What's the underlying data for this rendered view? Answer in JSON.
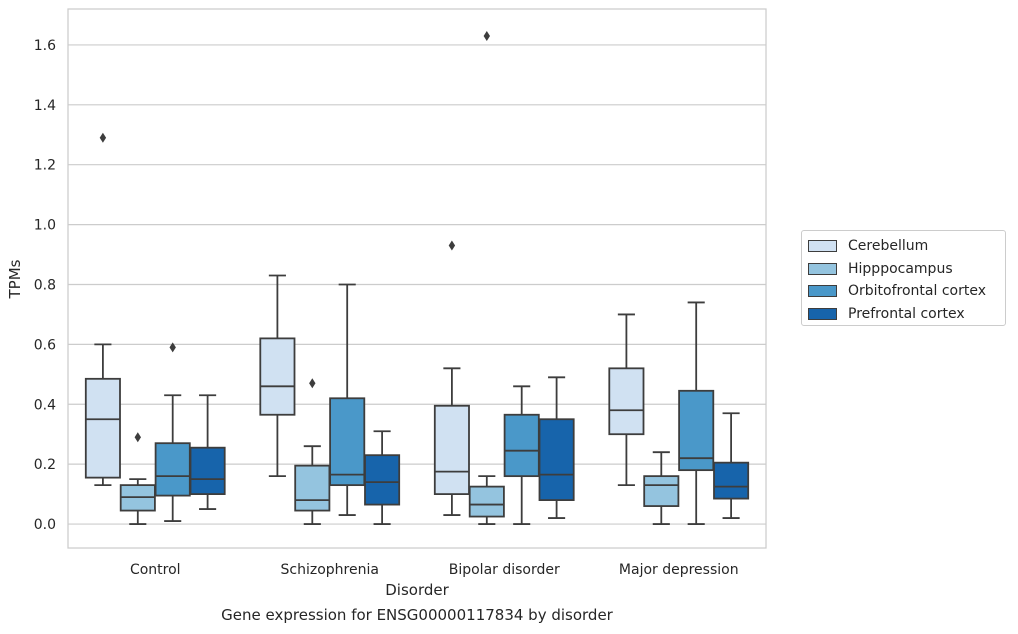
{
  "chart_data": {
    "type": "box",
    "caption": "Gene expression for ENSG00000117834 by disorder",
    "xlabel": "Disorder",
    "ylabel": "TPMs",
    "ylim": [
      -0.08,
      1.72
    ],
    "yticks": [
      "0.0",
      "0.2",
      "0.4",
      "0.6",
      "0.8",
      "1.0",
      "1.2",
      "1.4",
      "1.6"
    ],
    "ytick_values": [
      0,
      0.2,
      0.4,
      0.6,
      0.8,
      1.0,
      1.2,
      1.4,
      1.6
    ],
    "categories": [
      "Control",
      "Schizophrenia",
      "Bipolar disorder",
      "Major depression"
    ],
    "grid": "horizontal",
    "legend_position": "right",
    "series": [
      {
        "name": "Cerebellum",
        "color": "#d0e1f2",
        "boxes": [
          {
            "whisker_low": 0.13,
            "q1": 0.155,
            "median": 0.35,
            "q3": 0.485,
            "whisker_high": 0.6,
            "outliers": [
              1.29
            ]
          },
          {
            "whisker_low": 0.16,
            "q1": 0.365,
            "median": 0.46,
            "q3": 0.62,
            "whisker_high": 0.83,
            "outliers": []
          },
          {
            "whisker_low": 0.03,
            "q1": 0.1,
            "median": 0.175,
            "q3": 0.395,
            "whisker_high": 0.52,
            "outliers": [
              0.93
            ]
          },
          {
            "whisker_low": 0.13,
            "q1": 0.3,
            "median": 0.38,
            "q3": 0.52,
            "whisker_high": 0.7,
            "outliers": []
          }
        ]
      },
      {
        "name": "Hipppocampus",
        "color": "#94c4df",
        "boxes": [
          {
            "whisker_low": 0.0,
            "q1": 0.045,
            "median": 0.09,
            "q3": 0.13,
            "whisker_high": 0.15,
            "outliers": [
              0.29
            ]
          },
          {
            "whisker_low": 0.0,
            "q1": 0.045,
            "median": 0.08,
            "q3": 0.195,
            "whisker_high": 0.26,
            "outliers": [
              0.47
            ]
          },
          {
            "whisker_low": 0.0,
            "q1": 0.025,
            "median": 0.065,
            "q3": 0.125,
            "whisker_high": 0.16,
            "outliers": [
              1.63
            ]
          },
          {
            "whisker_low": 0.0,
            "q1": 0.06,
            "median": 0.13,
            "q3": 0.16,
            "whisker_high": 0.24,
            "outliers": []
          }
        ]
      },
      {
        "name": "Orbitofrontal cortex",
        "color": "#4a98c9",
        "boxes": [
          {
            "whisker_low": 0.01,
            "q1": 0.095,
            "median": 0.16,
            "q3": 0.27,
            "whisker_high": 0.43,
            "outliers": [
              0.59
            ]
          },
          {
            "whisker_low": 0.03,
            "q1": 0.13,
            "median": 0.165,
            "q3": 0.42,
            "whisker_high": 0.8,
            "outliers": []
          },
          {
            "whisker_low": 0.0,
            "q1": 0.16,
            "median": 0.245,
            "q3": 0.365,
            "whisker_high": 0.46,
            "outliers": []
          },
          {
            "whisker_low": 0.0,
            "q1": 0.18,
            "median": 0.22,
            "q3": 0.445,
            "whisker_high": 0.74,
            "outliers": []
          }
        ]
      },
      {
        "name": "Prefrontal cortex",
        "color": "#1764ab",
        "boxes": [
          {
            "whisker_low": 0.05,
            "q1": 0.1,
            "median": 0.15,
            "q3": 0.255,
            "whisker_high": 0.43,
            "outliers": []
          },
          {
            "whisker_low": 0.0,
            "q1": 0.065,
            "median": 0.14,
            "q3": 0.23,
            "whisker_high": 0.31,
            "outliers": []
          },
          {
            "whisker_low": 0.02,
            "q1": 0.08,
            "median": 0.165,
            "q3": 0.35,
            "whisker_high": 0.49,
            "outliers": []
          },
          {
            "whisker_low": 0.02,
            "q1": 0.085,
            "median": 0.125,
            "q3": 0.205,
            "whisker_high": 0.37,
            "outliers": []
          }
        ]
      }
    ]
  }
}
